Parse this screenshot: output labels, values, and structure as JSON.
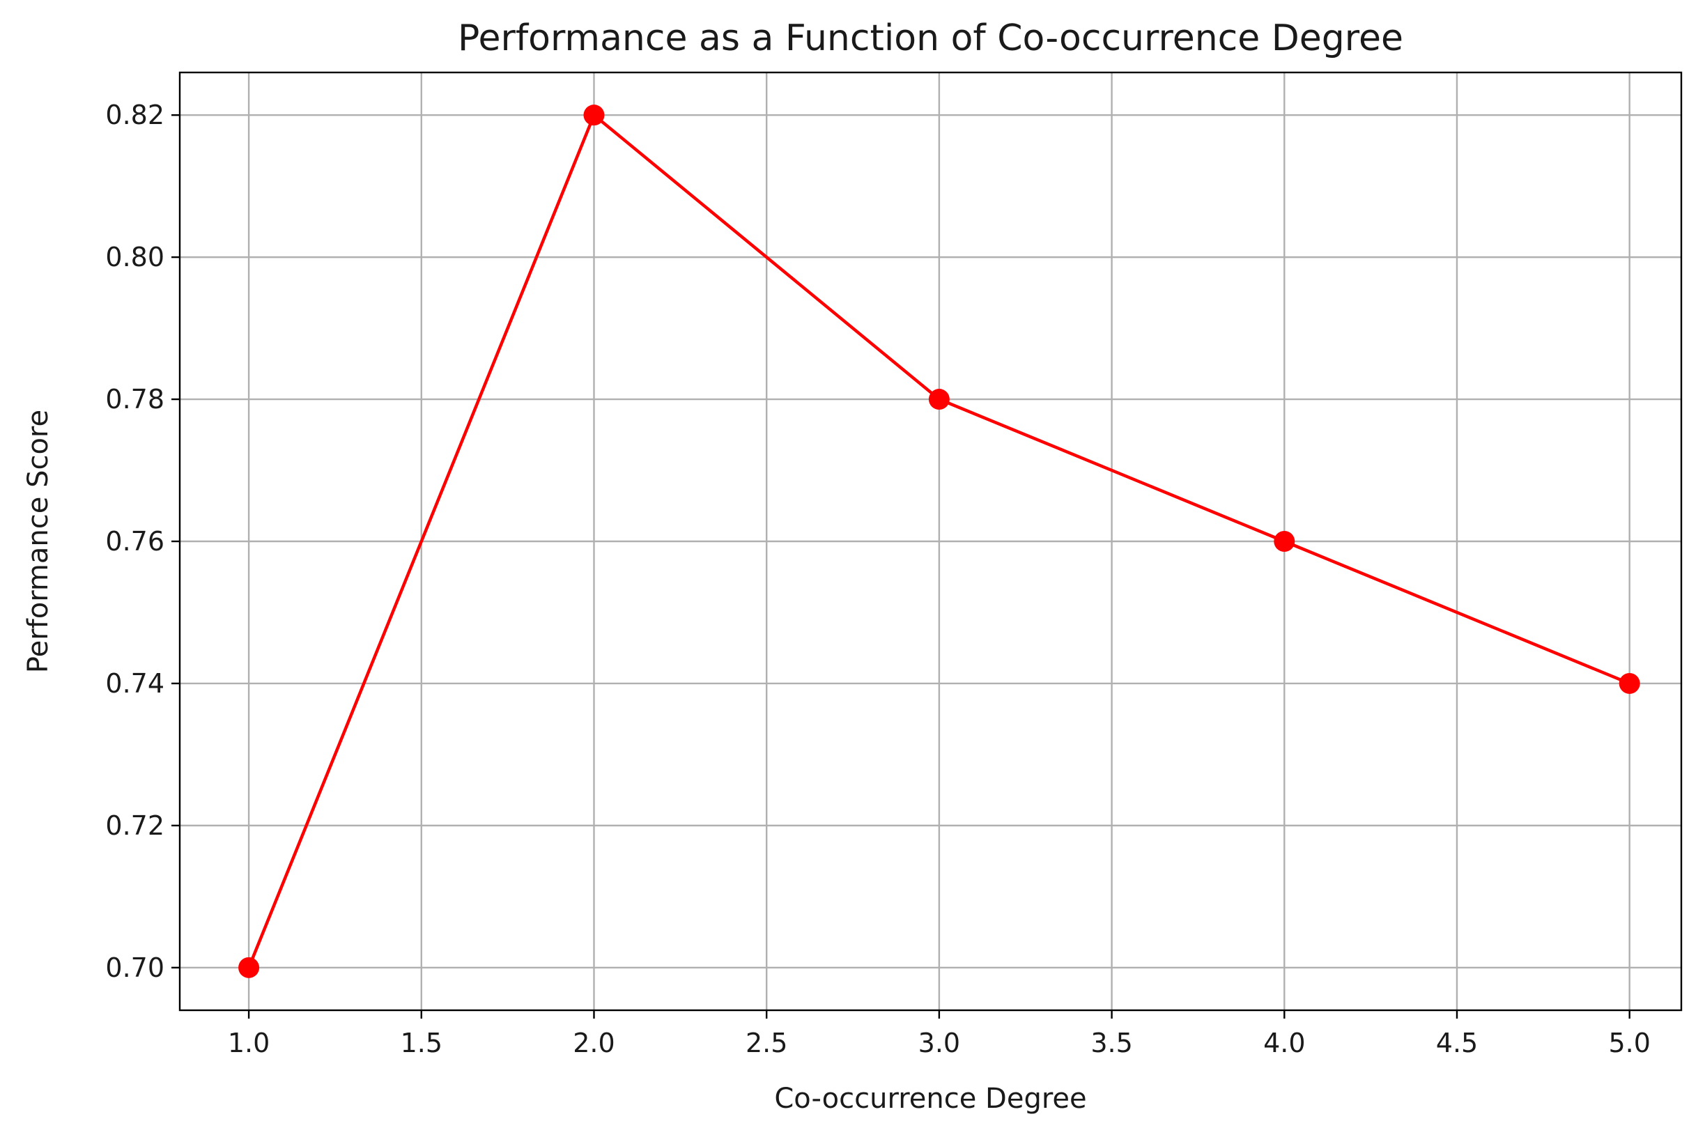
{
  "chart_data": {
    "type": "line",
    "title": "Performance as a Function of Co-occurrence Degree",
    "xlabel": "Co-occurrence Degree",
    "ylabel": "Performance Score",
    "xlim": [
      0.8,
      5.15
    ],
    "ylim": [
      0.694,
      0.826
    ],
    "xticks": [
      "1.0",
      "1.5",
      "2.0",
      "2.5",
      "3.0",
      "3.5",
      "4.0",
      "4.5",
      "5.0"
    ],
    "yticks": [
      "0.70",
      "0.72",
      "0.74",
      "0.76",
      "0.78",
      "0.80",
      "0.82"
    ],
    "grid": true,
    "series": [
      {
        "color": "#ff0000",
        "marker": "circle",
        "x": [
          1,
          2,
          3,
          4,
          5
        ],
        "y": [
          0.7,
          0.82,
          0.78,
          0.76,
          0.74
        ]
      }
    ]
  }
}
